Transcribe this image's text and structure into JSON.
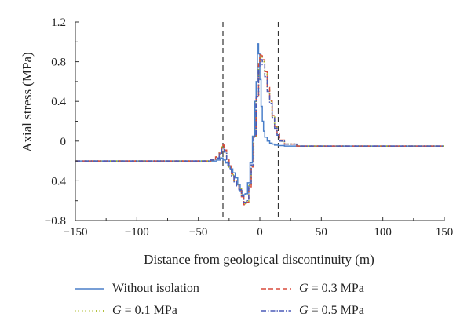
{
  "chart_data": {
    "type": "line",
    "xlabel": "Distance from geological discontinuity (m)",
    "ylabel": "Axial stress (MPa)",
    "xlim": [
      -150,
      150
    ],
    "ylim": [
      -0.8,
      1.2
    ],
    "xticks": [
      -150,
      -100,
      -50,
      0,
      50,
      100,
      150
    ],
    "yticks": [
      -0.8,
      -0.4,
      0,
      0.4,
      0.8,
      1.2
    ],
    "xtick_labels": [
      "−150",
      "−100",
      "−50",
      "0",
      "50",
      "100",
      "150"
    ],
    "ytick_labels": [
      "−0.8",
      "−0.4",
      "0",
      "0.4",
      "0.8",
      "1.2"
    ],
    "vlines": [
      -30,
      15
    ],
    "grid": false,
    "legend_position": "bottom",
    "series": [
      {
        "name": "Without isolation",
        "style": "solid",
        "color": "#4a7fc9",
        "x": [
          -150,
          -45,
          -40,
          -35,
          -32,
          -30,
          -28,
          -26,
          -24,
          -22,
          -20,
          -18,
          -16,
          -14,
          -12,
          -10,
          -8,
          -6,
          -4,
          -3,
          -2,
          -1,
          0,
          1,
          2,
          3,
          4,
          6,
          8,
          10,
          12,
          15,
          20,
          30,
          50,
          100,
          150
        ],
        "y": [
          -0.2,
          -0.2,
          -0.2,
          -0.19,
          -0.17,
          -0.19,
          -0.22,
          -0.25,
          -0.28,
          -0.32,
          -0.37,
          -0.44,
          -0.5,
          -0.54,
          -0.53,
          -0.42,
          -0.22,
          0.05,
          0.4,
          0.6,
          0.98,
          0.88,
          0.62,
          0.35,
          0.2,
          0.1,
          0.04,
          0.0,
          -0.02,
          -0.03,
          -0.04,
          -0.045,
          -0.05,
          -0.05,
          -0.05,
          -0.05,
          -0.05
        ]
      },
      {
        "name": "G = 0.1 MPa",
        "style": "dotted",
        "color": "#a8b820",
        "x": [
          -150,
          -45,
          -40,
          -36,
          -33,
          -31,
          -30,
          -29,
          -27,
          -25,
          -23,
          -21,
          -19,
          -17,
          -15,
          -13,
          -11,
          -9,
          -7,
          -5,
          -3,
          -1,
          0,
          1,
          2,
          4,
          6,
          8,
          10,
          12,
          14,
          16,
          20,
          30,
          50,
          100,
          150
        ],
        "y": [
          -0.2,
          -0.2,
          -0.19,
          -0.16,
          -0.12,
          -0.06,
          -0.05,
          -0.1,
          -0.2,
          -0.26,
          -0.34,
          -0.4,
          -0.44,
          -0.48,
          -0.55,
          -0.63,
          -0.61,
          -0.45,
          -0.25,
          0.05,
          0.45,
          0.78,
          0.86,
          0.85,
          0.8,
          0.68,
          0.52,
          0.4,
          0.25,
          0.14,
          0.06,
          0.0,
          -0.03,
          -0.05,
          -0.05,
          -0.05,
          -0.05
        ]
      },
      {
        "name": "G = 0.3 MPa",
        "style": "dashed",
        "color": "#d84a3c",
        "x": [
          -150,
          -45,
          -40,
          -36,
          -33,
          -31,
          -30,
          -29,
          -27,
          -25,
          -23,
          -21,
          -19,
          -17,
          -15,
          -13,
          -11,
          -9,
          -7,
          -5,
          -3,
          -1,
          0,
          1,
          2,
          4,
          6,
          8,
          10,
          12,
          14,
          16,
          20,
          30,
          50,
          100,
          150
        ],
        "y": [
          -0.2,
          -0.2,
          -0.19,
          -0.16,
          -0.12,
          -0.05,
          -0.04,
          -0.09,
          -0.19,
          -0.25,
          -0.33,
          -0.39,
          -0.44,
          -0.48,
          -0.56,
          -0.64,
          -0.62,
          -0.46,
          -0.26,
          0.04,
          0.44,
          0.78,
          0.87,
          0.86,
          0.82,
          0.7,
          0.54,
          0.41,
          0.26,
          0.15,
          0.07,
          0.01,
          -0.03,
          -0.05,
          -0.05,
          -0.05,
          -0.05
        ]
      },
      {
        "name": "G = 0.5 MPa",
        "style": "dashdot",
        "color": "#4a5ab8",
        "x": [
          -150,
          -45,
          -40,
          -36,
          -33,
          -31,
          -30,
          -29,
          -27,
          -25,
          -23,
          -21,
          -19,
          -17,
          -15,
          -13,
          -11,
          -9,
          -7,
          -5,
          -3,
          -1,
          0,
          1,
          2,
          4,
          6,
          8,
          10,
          12,
          14,
          16,
          20,
          30,
          50,
          100,
          150
        ],
        "y": [
          -0.2,
          -0.2,
          -0.19,
          -0.17,
          -0.13,
          -0.08,
          -0.07,
          -0.11,
          -0.21,
          -0.27,
          -0.35,
          -0.41,
          -0.45,
          -0.49,
          -0.55,
          -0.62,
          -0.6,
          -0.44,
          -0.24,
          0.05,
          0.45,
          0.75,
          0.83,
          0.82,
          0.77,
          0.65,
          0.5,
          0.38,
          0.24,
          0.13,
          0.06,
          0.0,
          -0.03,
          -0.05,
          -0.05,
          -0.05,
          -0.05
        ]
      }
    ]
  },
  "legend": {
    "items": [
      {
        "prefix": "",
        "italic": "",
        "text": "Without isolation"
      },
      {
        "prefix": "",
        "italic": "G",
        "text": " = 0.3 MPa"
      },
      {
        "prefix": "",
        "italic": "G",
        "text": " = 0.1 MPa"
      },
      {
        "prefix": "",
        "italic": "G",
        "text": " = 0.5 MPa"
      }
    ]
  }
}
